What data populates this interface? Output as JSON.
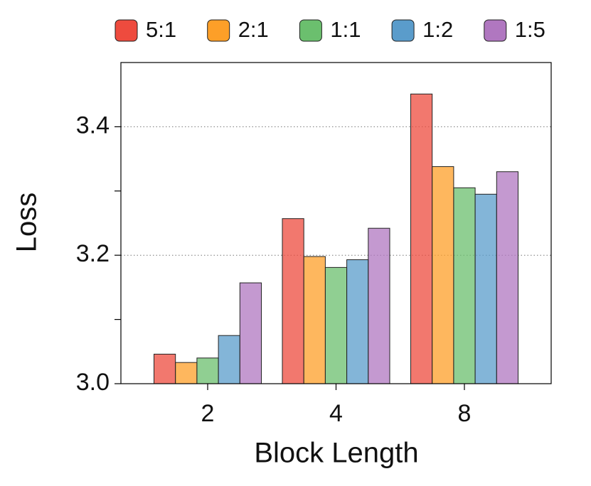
{
  "chart_data": {
    "type": "bar",
    "x_label": "Block Length",
    "y_label": "Loss",
    "categories": [
      "2",
      "4",
      "8"
    ],
    "series": [
      {
        "name": "5:1",
        "color": "#ee4b3e",
        "values": [
          3.046,
          3.257,
          3.451
        ]
      },
      {
        "name": "2:1",
        "color": "#fd9f28",
        "values": [
          3.033,
          3.198,
          3.338
        ]
      },
      {
        "name": "1:1",
        "color": "#6bbf6e",
        "values": [
          3.04,
          3.181,
          3.305
        ]
      },
      {
        "name": "1:2",
        "color": "#5a9ccb",
        "values": [
          3.075,
          3.193,
          3.295
        ]
      },
      {
        "name": "1:5",
        "color": "#b077c0",
        "values": [
          3.157,
          3.242,
          3.33
        ]
      }
    ],
    "ylim": [
      3.0,
      3.5
    ],
    "yticks": [
      {
        "value": 3.0,
        "label": "3.0"
      },
      3.2,
      3.4
    ],
    "yminorticks": [
      3.1,
      3.3
    ],
    "grid": true,
    "legend": "top"
  }
}
